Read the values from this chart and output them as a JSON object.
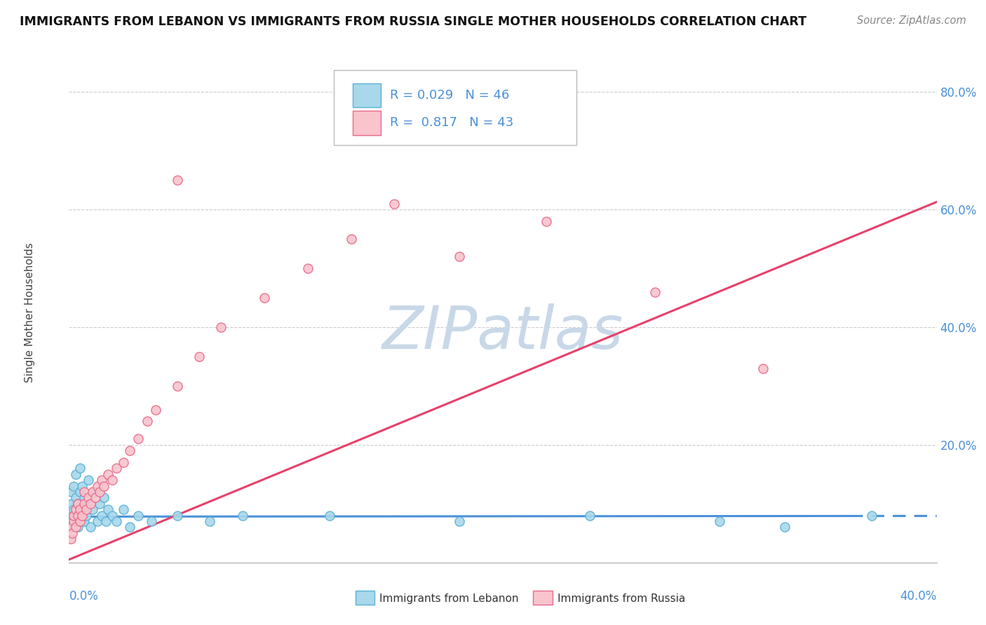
{
  "title": "IMMIGRANTS FROM LEBANON VS IMMIGRANTS FROM RUSSIA SINGLE MOTHER HOUSEHOLDS CORRELATION CHART",
  "source": "Source: ZipAtlas.com",
  "ylabel": "Single Mother Households",
  "legend_label1": "Immigrants from Lebanon",
  "legend_label2": "Immigrants from Russia",
  "R1": 0.029,
  "N1": 46,
  "R2": 0.817,
  "N2": 43,
  "color_lebanon_fill": "#a8d8ea",
  "color_lebanon_edge": "#5bafd6",
  "color_russia_fill": "#f9c4cc",
  "color_russia_edge": "#e8698a",
  "color_line_lebanon": "#4a90d9",
  "color_line_russia": "#e8406a",
  "xlim": [
    0,
    0.4
  ],
  "ylim": [
    0,
    0.85
  ],
  "ytick_positions": [
    0.0,
    0.2,
    0.4,
    0.6,
    0.8
  ],
  "ytick_labels": [
    "",
    "20.0%",
    "40.0%",
    "60.0%",
    "80.0%"
  ],
  "leb_slope": 0.003,
  "leb_intercept": 0.078,
  "rus_slope": 1.52,
  "rus_intercept": 0.005,
  "leb_line_solid_end": 0.36,
  "lebanon_x": [
    0.0008,
    0.001,
    0.0012,
    0.0015,
    0.002,
    0.002,
    0.0025,
    0.003,
    0.003,
    0.0035,
    0.004,
    0.004,
    0.005,
    0.005,
    0.005,
    0.006,
    0.006,
    0.007,
    0.007,
    0.008,
    0.009,
    0.009,
    0.01,
    0.011,
    0.012,
    0.013,
    0.014,
    0.015,
    0.016,
    0.017,
    0.018,
    0.02,
    0.022,
    0.025,
    0.028,
    0.032,
    0.038,
    0.05,
    0.065,
    0.08,
    0.12,
    0.18,
    0.24,
    0.3,
    0.33,
    0.37
  ],
  "lebanon_y": [
    0.06,
    0.1,
    0.12,
    0.08,
    0.09,
    0.13,
    0.07,
    0.11,
    0.15,
    0.08,
    0.06,
    0.1,
    0.07,
    0.12,
    0.16,
    0.09,
    0.13,
    0.07,
    0.11,
    0.08,
    0.1,
    0.14,
    0.06,
    0.09,
    0.12,
    0.07,
    0.1,
    0.08,
    0.11,
    0.07,
    0.09,
    0.08,
    0.07,
    0.09,
    0.06,
    0.08,
    0.07,
    0.08,
    0.07,
    0.08,
    0.08,
    0.07,
    0.08,
    0.07,
    0.06,
    0.08
  ],
  "russia_x": [
    0.0008,
    0.001,
    0.0015,
    0.002,
    0.002,
    0.003,
    0.003,
    0.004,
    0.004,
    0.005,
    0.005,
    0.006,
    0.007,
    0.007,
    0.008,
    0.009,
    0.01,
    0.011,
    0.012,
    0.013,
    0.014,
    0.015,
    0.016,
    0.018,
    0.02,
    0.022,
    0.025,
    0.028,
    0.032,
    0.036,
    0.04,
    0.05,
    0.06,
    0.07,
    0.09,
    0.11,
    0.13,
    0.15,
    0.18,
    0.22,
    0.27,
    0.32,
    0.05
  ],
  "russia_y": [
    0.04,
    0.06,
    0.05,
    0.07,
    0.08,
    0.06,
    0.09,
    0.08,
    0.1,
    0.07,
    0.09,
    0.08,
    0.1,
    0.12,
    0.09,
    0.11,
    0.1,
    0.12,
    0.11,
    0.13,
    0.12,
    0.14,
    0.13,
    0.15,
    0.14,
    0.16,
    0.17,
    0.19,
    0.21,
    0.24,
    0.26,
    0.3,
    0.35,
    0.4,
    0.45,
    0.5,
    0.55,
    0.61,
    0.52,
    0.58,
    0.46,
    0.33,
    0.65
  ],
  "watermark_text": "ZIPatlas",
  "watermark_color": "#c8d8e8",
  "bg_color": "#ffffff"
}
